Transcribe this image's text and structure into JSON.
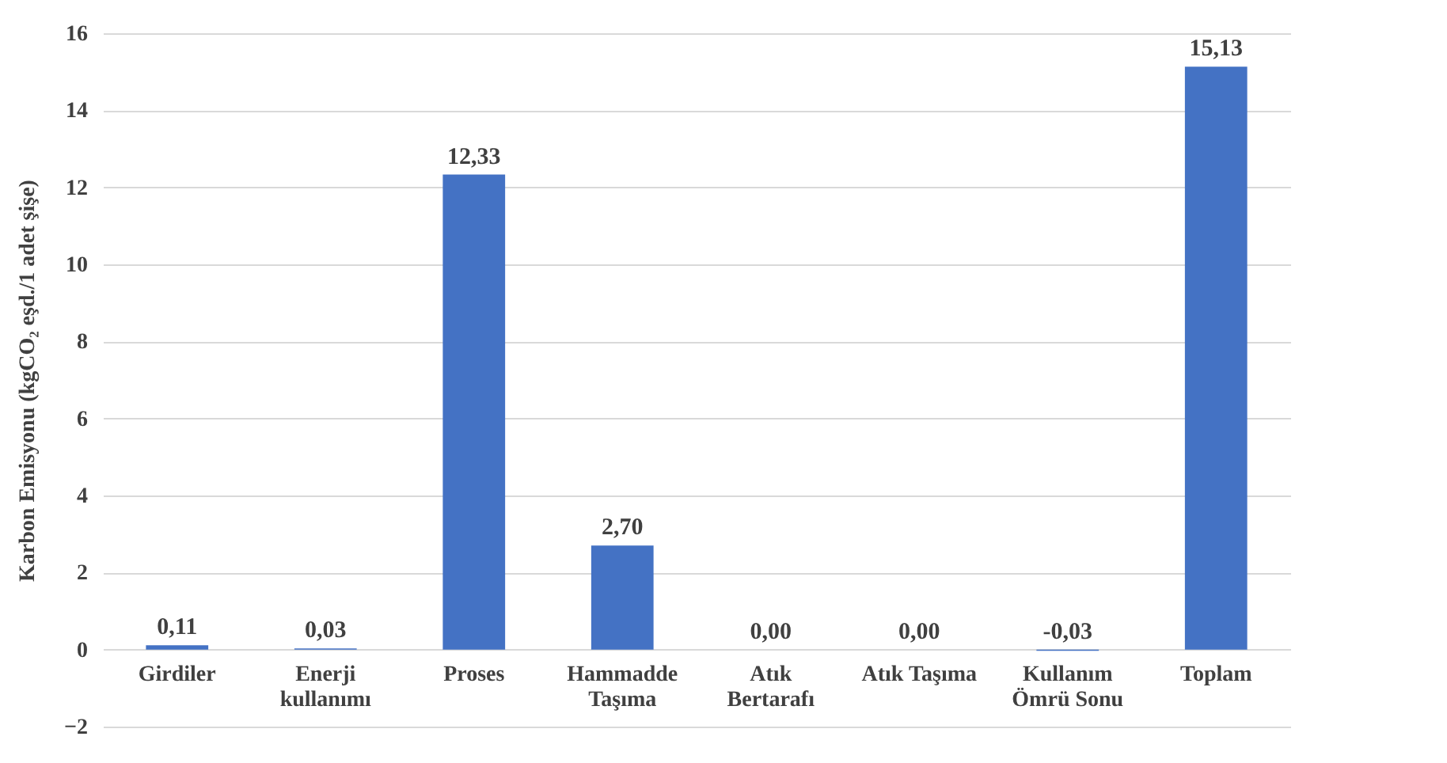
{
  "chart_data": {
    "type": "bar",
    "ylabel": "Karbon Emisyonu (kgCO₂ eşd./1 adet şişe)",
    "categories": [
      "Girdiler",
      "Enerji kullanımı",
      "Proses",
      "Hammadde Taşıma",
      "Atık Bertarafı",
      "Atık Taşıma",
      "Kullanım Ömrü Sonu",
      "Toplam"
    ],
    "values": [
      0.11,
      0.03,
      12.33,
      2.7,
      0.0,
      0.0,
      -0.03,
      15.13
    ],
    "value_labels": [
      "0,11",
      "0,03",
      "12,33",
      "2,70",
      "0,00",
      "0,00",
      "-0,03",
      "15,13"
    ],
    "color": "#4472c4",
    "ylim": [
      -2,
      16
    ],
    "yticks": [
      -2,
      0,
      2,
      4,
      6,
      8,
      10,
      12,
      14,
      16
    ],
    "grid": "y"
  }
}
